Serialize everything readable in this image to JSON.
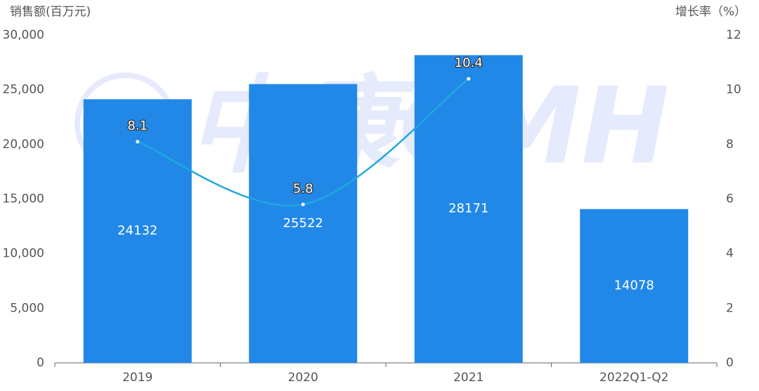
{
  "chart_data": {
    "type": "bar",
    "y_axis_title": "销售额(百万元)",
    "y2_axis_title": "增长率（%）",
    "watermark": "中康CMH",
    "categories": [
      "2019",
      "2020",
      "2021",
      "2022Q1-Q2"
    ],
    "series": [
      {
        "type": "bar",
        "color": "#2188e8",
        "values": [
          24132,
          25522,
          28171,
          14078
        ]
      },
      {
        "type": "line",
        "axis": "y2",
        "color": "#1fa8e0",
        "values": [
          8.1,
          5.8,
          10.4,
          null
        ]
      }
    ],
    "ylim": [
      0,
      30000
    ],
    "yticks": [
      0,
      {
        "value": 5000,
        "label": "5,000"
      },
      {
        "value": 10000,
        "label": "10,000"
      },
      {
        "value": 15000,
        "label": "15,000"
      },
      {
        "value": 20000,
        "label": "20,000"
      },
      {
        "value": 25000,
        "label": "25,000"
      },
      {
        "value": 30000,
        "label": "30,000"
      }
    ],
    "y2lim": [
      0,
      12
    ],
    "y2ticks": [
      0,
      2,
      4,
      6,
      8,
      10,
      12
    ]
  }
}
